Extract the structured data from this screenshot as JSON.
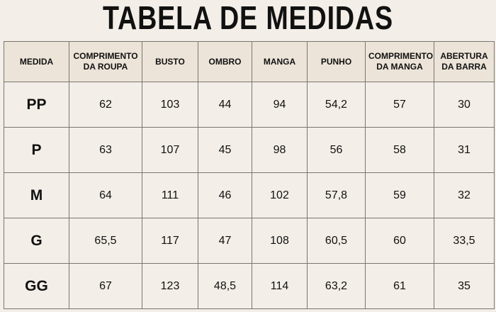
{
  "header": {
    "title": "TABELA DE MEDIDAS"
  },
  "table": {
    "columns": [
      "MEDIDA",
      "COMPRIMENTO DA ROUPA",
      "BUSTO",
      "OMBRO",
      "MANGA",
      "PUNHO",
      "COMPRIMENTO DA MANGA",
      "ABERTURA DA BARRA"
    ],
    "rows": [
      [
        "PP",
        "62",
        "103",
        "44",
        "94",
        "54,2",
        "57",
        "30"
      ],
      [
        "P",
        "63",
        "107",
        "45",
        "98",
        "56",
        "58",
        "31"
      ],
      [
        "M",
        "64",
        "111",
        "46",
        "102",
        "57,8",
        "59",
        "32"
      ],
      [
        "G",
        "65,5",
        "117",
        "47",
        "108",
        "60,5",
        "60",
        "33,5"
      ],
      [
        "GG",
        "67",
        "123",
        "48,5",
        "114",
        "63,2",
        "61",
        "35"
      ]
    ]
  }
}
